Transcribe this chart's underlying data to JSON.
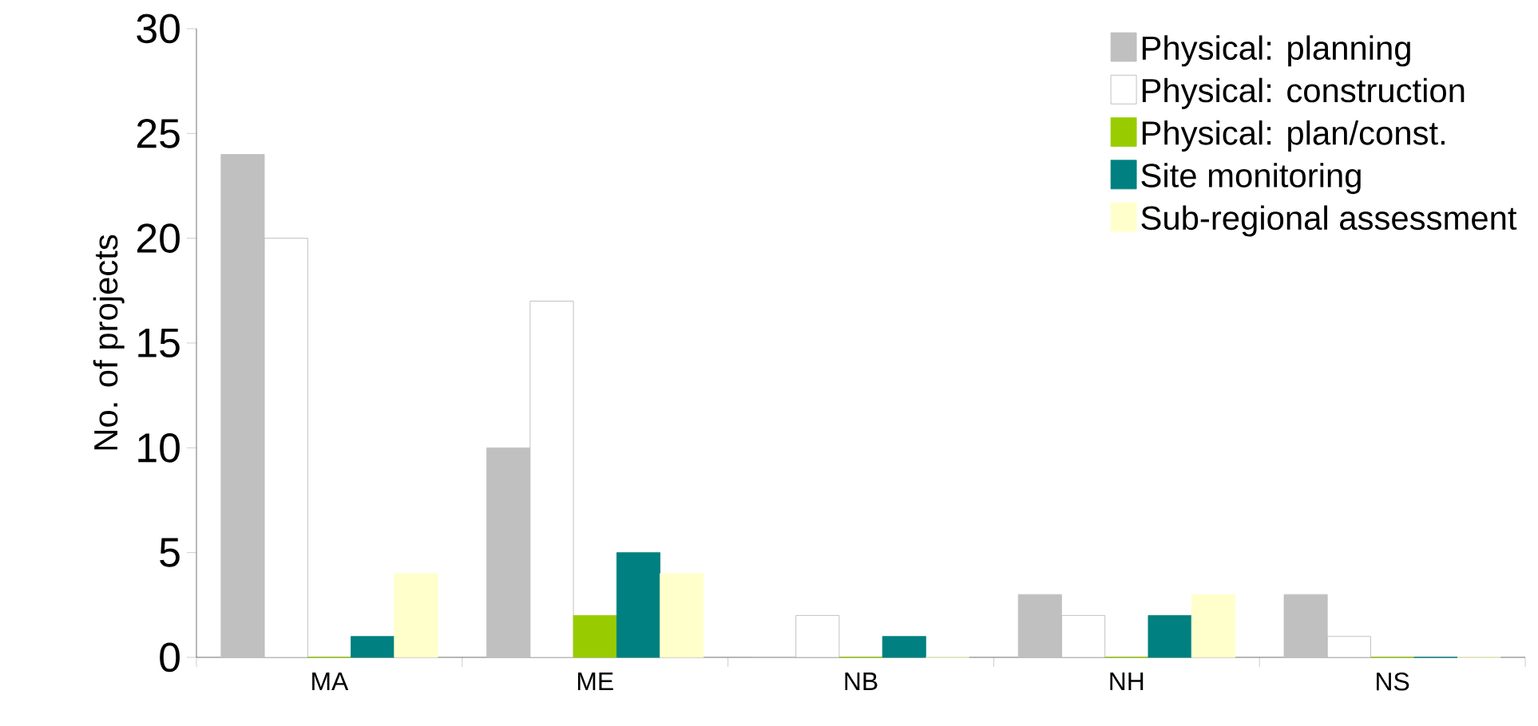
{
  "chart_data": {
    "type": "bar",
    "ylabel": "No. of projects",
    "categories": [
      "MA",
      "ME",
      "NB",
      "NH",
      "NS"
    ],
    "series": [
      {
        "name": "Physical: planning",
        "color": "#c0c0c0",
        "values": [
          24,
          10,
          0,
          3,
          3
        ]
      },
      {
        "name": "Physical: construction",
        "color": "#ffffff",
        "values": [
          20,
          17,
          2,
          2,
          1
        ]
      },
      {
        "name": "Physical: plan/const.",
        "color": "#99cc00",
        "values": [
          0,
          2,
          0,
          0,
          0
        ]
      },
      {
        "name": "Site monitoring",
        "color": "#008080",
        "values": [
          1,
          5,
          1,
          2,
          0
        ]
      },
      {
        "name": "Sub-regional assessment",
        "color": "#ffffcc",
        "values": [
          4,
          4,
          0,
          3,
          0
        ]
      }
    ],
    "ylim": [
      0,
      30
    ],
    "yticks": [
      0,
      5,
      10,
      15,
      20,
      25,
      30
    ],
    "grid": false,
    "legend": "top right"
  }
}
